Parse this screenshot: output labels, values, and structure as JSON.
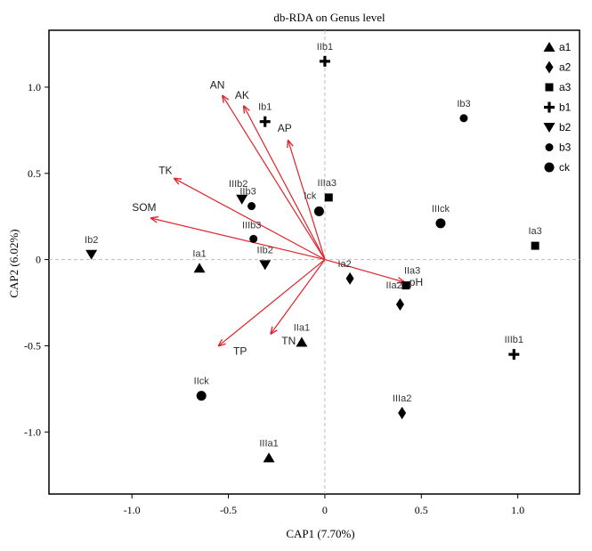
{
  "chart_data": {
    "type": "scatter",
    "title": "db-RDA on Genus level",
    "xlabel": "CAP1 (7.70%)",
    "ylabel": "CAP2 (6.02%)",
    "xlim": [
      -1.43,
      1.32
    ],
    "ylim": [
      -1.36,
      1.33
    ],
    "xticks": [
      -1.0,
      -0.5,
      0.0,
      0.5,
      1.0
    ],
    "xtick_labels": [
      "-1.0",
      "-0.5",
      "0",
      "0.5",
      "1.0"
    ],
    "yticks": [
      -1.0,
      -0.5,
      0.0,
      0.5,
      1.0
    ],
    "ytick_labels": [
      "-1.0",
      "-0.5",
      "0",
      "0.5",
      "1.0"
    ],
    "grid": false,
    "zero_lines": true,
    "legend": "top-right",
    "vector_color": "#e0242a",
    "groups": [
      {
        "name": "a1",
        "marker": "triangle-up"
      },
      {
        "name": "a2",
        "marker": "diamond"
      },
      {
        "name": "a3",
        "marker": "square"
      },
      {
        "name": "b1",
        "marker": "plus"
      },
      {
        "name": "b2",
        "marker": "triangle-down"
      },
      {
        "name": "b3",
        "marker": "circle-small"
      },
      {
        "name": "ck",
        "marker": "circle"
      }
    ],
    "points": [
      {
        "label": "Ia1",
        "group": "a1",
        "x": -0.65,
        "y": -0.05
      },
      {
        "label": "IIa1",
        "group": "a1",
        "x": -0.12,
        "y": -0.48
      },
      {
        "label": "IIIa1",
        "group": "a1",
        "x": -0.29,
        "y": -1.15
      },
      {
        "label": "Ia2",
        "group": "a2",
        "x": 0.13,
        "y": -0.11
      },
      {
        "label": "IIa2",
        "group": "a2",
        "x": 0.39,
        "y": -0.26
      },
      {
        "label": "IIIa2",
        "group": "a2",
        "x": 0.4,
        "y": -0.89
      },
      {
        "label": "Ia3",
        "group": "a3",
        "x": 1.09,
        "y": 0.08
      },
      {
        "label": "IIa3",
        "group": "a3",
        "x": 0.42,
        "y": -0.15
      },
      {
        "label": "IIIa3",
        "group": "a3",
        "x": 0.02,
        "y": 0.36
      },
      {
        "label": "Ib1",
        "group": "b1",
        "x": -0.31,
        "y": 0.8
      },
      {
        "label": "IIb1",
        "group": "b1",
        "x": 0.0,
        "y": 1.15
      },
      {
        "label": "IIIb1",
        "group": "b1",
        "x": 0.98,
        "y": -0.55
      },
      {
        "label": "Ib2",
        "group": "b2",
        "x": -1.21,
        "y": 0.03
      },
      {
        "label": "IIb2",
        "group": "b2",
        "x": -0.31,
        "y": -0.03
      },
      {
        "label": "IIIb2",
        "group": "b2",
        "x": -0.43,
        "y": 0.35
      },
      {
        "label": "Ib3",
        "group": "b3",
        "x": 0.72,
        "y": 0.82
      },
      {
        "label": "IIb3",
        "group": "b3",
        "x": -0.38,
        "y": 0.31
      },
      {
        "label": "IIIb3",
        "group": "b3",
        "x": -0.37,
        "y": 0.12
      },
      {
        "label": "Ick",
        "group": "ck",
        "x": -0.03,
        "y": 0.28
      },
      {
        "label": "IIck",
        "group": "ck",
        "x": -0.64,
        "y": -0.79
      },
      {
        "label": "IIIck",
        "group": "ck",
        "x": 0.6,
        "y": 0.21
      }
    ],
    "vectors": [
      {
        "label": "AN",
        "x": -0.53,
        "y": 0.95
      },
      {
        "label": "AK",
        "x": -0.42,
        "y": 0.89
      },
      {
        "label": "AP",
        "x": -0.19,
        "y": 0.69
      },
      {
        "label": "TK",
        "x": -0.78,
        "y": 0.47
      },
      {
        "label": "SOM",
        "x": -0.9,
        "y": 0.24
      },
      {
        "label": "pH",
        "x": 0.41,
        "y": -0.13
      },
      {
        "label": "TN",
        "x": -0.28,
        "y": -0.43
      },
      {
        "label": "TP",
        "x": -0.55,
        "y": -0.5
      }
    ]
  }
}
